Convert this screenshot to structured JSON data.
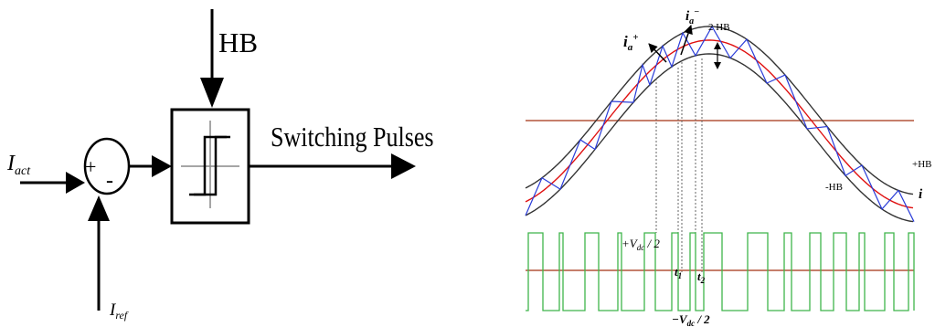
{
  "left_diagram": {
    "hb_label": "HB",
    "output_label": "Switching Pulses",
    "input_actual": {
      "main": "I",
      "sub": "act"
    },
    "input_reference": {
      "main": "I",
      "sub": "ref"
    },
    "sum_plus": "+",
    "sum_minus": "-"
  },
  "right_diagram": {
    "ia_minus": {
      "main": "i",
      "sub": "a",
      "sup": "−"
    },
    "ia_plus": {
      "main": "i",
      "sub": "a",
      "sup": "+"
    },
    "two_hb": "2 HB",
    "plus_hb": "+HB",
    "minus_hb": "-HB",
    "i_label": "i",
    "plus_vdc": "+V",
    "plus_vdc_sub": "dc",
    "plus_vdc_tail": " / 2",
    "minus_vdc": "−V",
    "minus_vdc_sub": "dc",
    "minus_vdc_tail": " / 2",
    "t1": "t",
    "t1_sub": "1",
    "t2": "t",
    "t2_sub": "2"
  },
  "colors": {
    "band": "#333333",
    "reference": "#e01010",
    "actual": "#2a3cd8",
    "axis_line": "#b3553a",
    "pulse": "#3fb54a"
  }
}
